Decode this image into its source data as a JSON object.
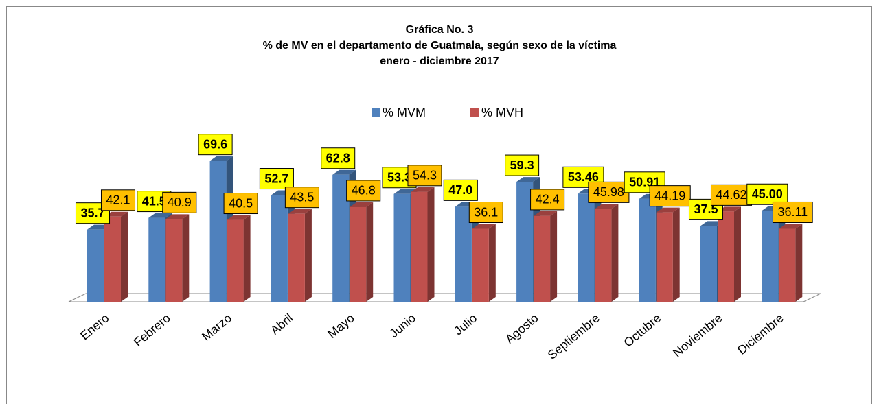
{
  "chart_data": {
    "type": "bar3d",
    "title": [
      "Gráfica No. 3",
      "% de MV en el departamento de Guatmala, según sexo de la víctima",
      "enero - diciembre 2017"
    ],
    "categories": [
      "Enero",
      "Febrero",
      "Marzo",
      "Abril",
      "Mayo",
      "Junio",
      "Julio",
      "Agosto",
      "Septiembre",
      "Octubre",
      "Noviembre",
      "Diciembre"
    ],
    "series": [
      {
        "name": "% MVM",
        "color": "#4f81bd",
        "label_color": "#ffff00",
        "values": [
          35.7,
          41.5,
          69.6,
          52.7,
          62.8,
          53.3,
          47.0,
          59.3,
          53.46,
          50.91,
          37.5,
          45.0
        ],
        "value_labels": [
          "35.7",
          "41.5",
          "69.6",
          "52.7",
          "62.8",
          "53.3",
          "47.0",
          "59.3",
          "53.46",
          "50.91",
          "37.5",
          "45.00"
        ]
      },
      {
        "name": "% MVH",
        "color": "#c0504d",
        "label_color": "#ffc000",
        "values": [
          42.1,
          40.9,
          40.5,
          43.5,
          46.8,
          54.3,
          36.1,
          42.4,
          45.98,
          44.19,
          44.62,
          36.11
        ],
        "value_labels": [
          "42.1",
          "40.9",
          "40.5",
          "43.5",
          "46.8",
          "54.3",
          "36.1",
          "42.4",
          "45.98",
          "44.19",
          "44.62",
          "36.11"
        ]
      }
    ],
    "ylim": [
      0,
      100
    ],
    "legend": "top"
  }
}
